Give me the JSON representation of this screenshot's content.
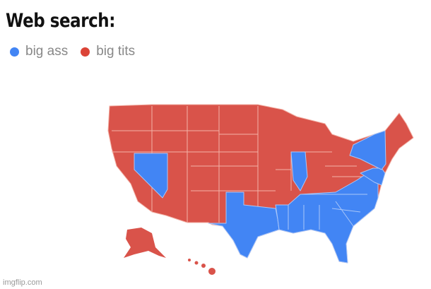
{
  "title": "Web search:",
  "legend": [
    {
      "label": "big ass",
      "color": "#4285f4"
    },
    {
      "label": "big tits",
      "color": "#db4437"
    }
  ],
  "map": {
    "blue_states": [
      "NV",
      "TX",
      "LA",
      "MS",
      "AL",
      "TN",
      "GA",
      "FL",
      "SC",
      "NC",
      "VA",
      "MD",
      "DE",
      "NJ",
      "NY",
      "IL"
    ],
    "red_states": [
      "WA",
      "OR",
      "CA",
      "ID",
      "MT",
      "WY",
      "UT",
      "AZ",
      "CO",
      "NM",
      "ND",
      "SD",
      "NE",
      "KS",
      "OK",
      "MN",
      "IA",
      "MO",
      "AR",
      "WI",
      "MI",
      "IN",
      "OH",
      "KY",
      "WV",
      "PA",
      "CT",
      "RI",
      "MA",
      "VT",
      "NH",
      "ME",
      "AK",
      "HI"
    ]
  },
  "watermark": "imgflip.com"
}
